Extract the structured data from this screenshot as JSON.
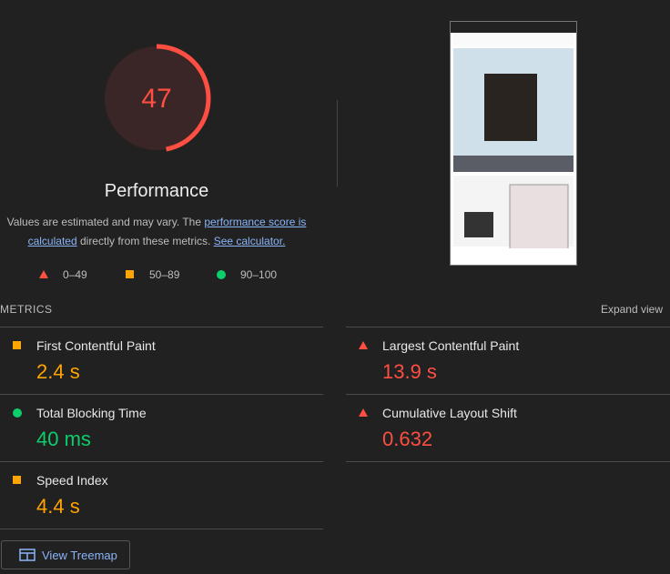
{
  "gauge": {
    "score": 47,
    "label": "Performance"
  },
  "description": {
    "text_before": "Values are estimated and may vary. The ",
    "link_score": "performance score is calculated",
    "text_middle": " directly from these metrics. ",
    "link_calculator": "See calculator."
  },
  "legend": [
    {
      "range": "0–49",
      "rating": "fail"
    },
    {
      "range": "50–89",
      "rating": "average"
    },
    {
      "range": "90–100",
      "rating": "pass"
    }
  ],
  "metrics": {
    "heading": "METRICS",
    "toggle": "Expand view",
    "items": [
      {
        "title": "First Contentful Paint",
        "value": "2.4 s",
        "rating": "average"
      },
      {
        "title": "Largest Contentful Paint",
        "value": "13.9 s",
        "rating": "fail"
      },
      {
        "title": "Total Blocking Time",
        "value": "40 ms",
        "rating": "pass"
      },
      {
        "title": "Cumulative Layout Shift",
        "value": "0.632",
        "rating": "fail"
      },
      {
        "title": "Speed Index",
        "value": "4.4 s",
        "rating": "average"
      }
    ]
  },
  "treemap_button": "View Treemap"
}
